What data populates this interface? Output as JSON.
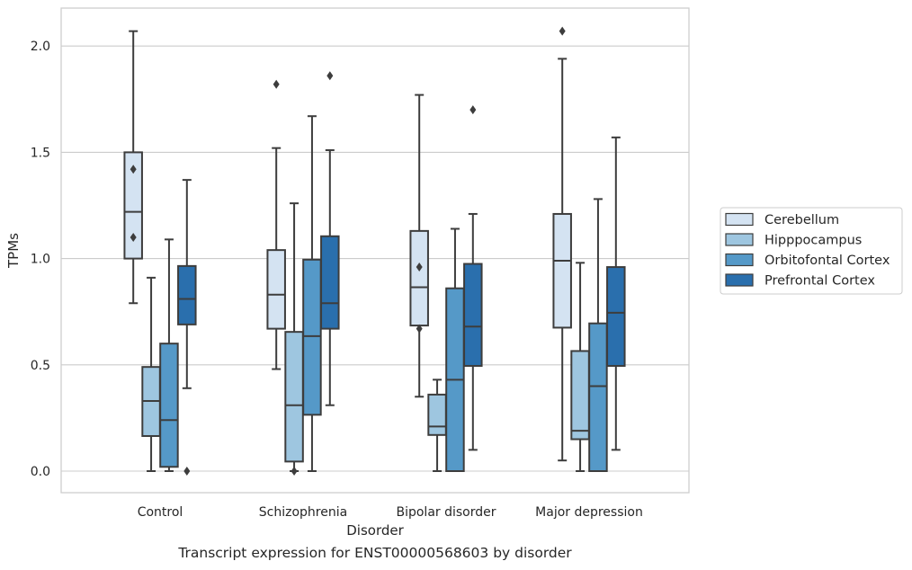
{
  "caption": "Transcript expression for ENST00000568603 by disorder",
  "chart_data": {
    "type": "boxplot",
    "xlabel": "Disorder",
    "ylabel": "TPMs",
    "ylim": [
      -0.1,
      2.18
    ],
    "yticks": [
      "0.0",
      "0.5",
      "1.0",
      "1.5",
      "2.0"
    ],
    "ytick_values": [
      0.0,
      0.5,
      1.0,
      1.5,
      2.0
    ],
    "grid": "horizontal",
    "legend_position": "right",
    "categories": [
      "Control",
      "Schizophrenia",
      "Bipolar disorder",
      "Major depression"
    ],
    "series": [
      {
        "name": "Cerebellum",
        "color": "#d4e3f2",
        "boxes": [
          {
            "whislo": 0.79,
            "q1": 1.0,
            "med": 1.22,
            "q3": 1.5,
            "whishi": 2.07,
            "fliers": [
              1.42,
              1.1
            ]
          },
          {
            "whislo": 0.48,
            "q1": 0.67,
            "med": 0.83,
            "q3": 1.04,
            "whishi": 1.52,
            "fliers": [
              1.82
            ]
          },
          {
            "whislo": 0.35,
            "q1": 0.685,
            "med": 0.865,
            "q3": 1.13,
            "whishi": 1.77,
            "fliers": [
              0.96,
              0.67
            ]
          },
          {
            "whislo": 0.05,
            "q1": 0.675,
            "med": 0.99,
            "q3": 1.21,
            "whishi": 1.94,
            "fliers": [
              2.07
            ]
          }
        ]
      },
      {
        "name": "Hipppocampus",
        "color": "#9ec6e0",
        "boxes": [
          {
            "whislo": 0.0,
            "q1": 0.165,
            "med": 0.33,
            "q3": 0.49,
            "whishi": 0.91,
            "fliers": []
          },
          {
            "whislo": 0.0,
            "q1": 0.045,
            "med": 0.31,
            "q3": 0.655,
            "whishi": 1.26,
            "fliers": [
              0.0
            ]
          },
          {
            "whislo": 0.0,
            "q1": 0.17,
            "med": 0.21,
            "q3": 0.36,
            "whishi": 0.43,
            "fliers": []
          },
          {
            "whislo": 0.0,
            "q1": 0.15,
            "med": 0.19,
            "q3": 0.565,
            "whishi": 0.98,
            "fliers": []
          }
        ]
      },
      {
        "name": "Orbitofontal Cortex",
        "color": "#5599c8",
        "boxes": [
          {
            "whislo": 0.0,
            "q1": 0.02,
            "med": 0.24,
            "q3": 0.6,
            "whishi": 1.09,
            "fliers": []
          },
          {
            "whislo": 0.0,
            "q1": 0.265,
            "med": 0.635,
            "q3": 0.995,
            "whishi": 1.67,
            "fliers": []
          },
          {
            "whislo": 0.0,
            "q1": 0.0,
            "med": 0.43,
            "q3": 0.86,
            "whishi": 1.14,
            "fliers": []
          },
          {
            "whislo": 0.0,
            "q1": 0.0,
            "med": 0.4,
            "q3": 0.695,
            "whishi": 1.28,
            "fliers": []
          }
        ]
      },
      {
        "name": "Prefrontal Cortex",
        "color": "#2a6fad",
        "boxes": [
          {
            "whislo": 0.39,
            "q1": 0.69,
            "med": 0.81,
            "q3": 0.965,
            "whishi": 1.37,
            "fliers": [
              0.0
            ]
          },
          {
            "whislo": 0.31,
            "q1": 0.67,
            "med": 0.79,
            "q3": 1.105,
            "whishi": 1.51,
            "fliers": [
              1.86
            ]
          },
          {
            "whislo": 0.1,
            "q1": 0.495,
            "med": 0.68,
            "q3": 0.975,
            "whishi": 1.21,
            "fliers": [
              1.7
            ]
          },
          {
            "whislo": 0.1,
            "q1": 0.495,
            "med": 0.745,
            "q3": 0.96,
            "whishi": 1.57,
            "fliers": []
          }
        ]
      }
    ]
  }
}
